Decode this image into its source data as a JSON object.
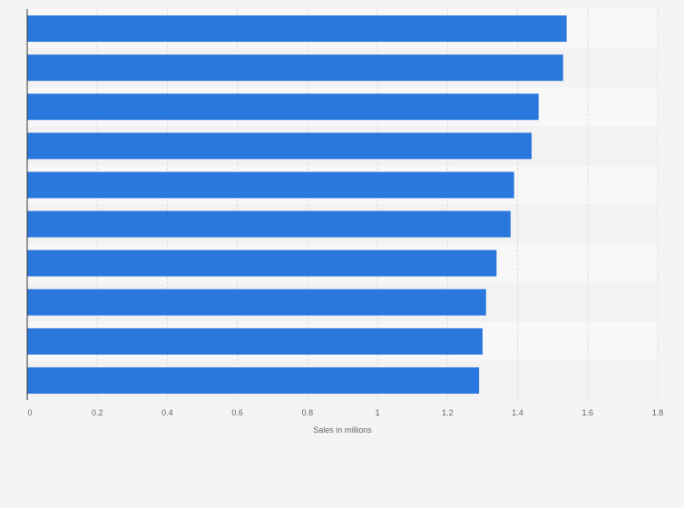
{
  "chart_data": {
    "type": "bar",
    "orientation": "horizontal",
    "title": "",
    "xlabel": "Sales in millions",
    "ylabel": "",
    "xlim": [
      0,
      1.8
    ],
    "x_ticks": [
      0,
      0.2,
      0.4,
      0.6,
      0.8,
      1,
      1.2,
      1.4,
      1.6,
      1.8
    ],
    "x_tick_labels": [
      "0",
      "0.2",
      "0.4",
      "0.6",
      "0.8",
      "1",
      "1.2",
      "1.4",
      "1.6",
      "1.8"
    ],
    "categories": [
      "",
      "",
      "",
      "",
      "",
      "",
      "",
      "",
      "",
      ""
    ],
    "values": [
      1.54,
      1.53,
      1.46,
      1.44,
      1.39,
      1.38,
      1.34,
      1.31,
      1.3,
      1.29
    ],
    "grid": true,
    "legend": "none"
  },
  "colors": {
    "bar": "#2a77dd",
    "background": "#f4f4f4",
    "band_light": "#f8f8f8",
    "band_dark": "#f2f2f2",
    "grid": "#dedede",
    "axis": "#333333",
    "text": "#666666"
  }
}
